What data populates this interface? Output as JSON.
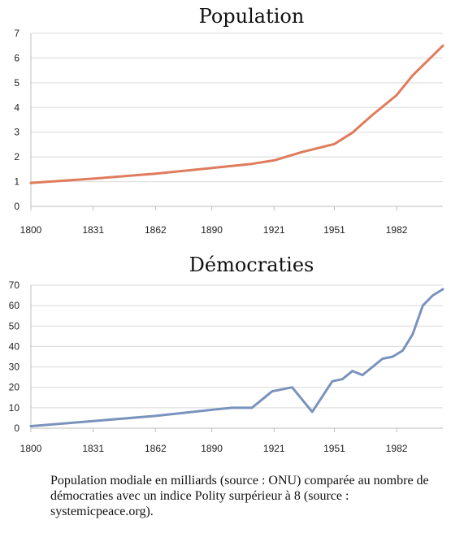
{
  "chart_data": [
    {
      "type": "line",
      "title": "Population",
      "xlabel": "",
      "ylabel": "",
      "x_ticks": [
        "1800",
        "1831",
        "1862",
        "1890",
        "1921",
        "1951",
        "1982"
      ],
      "xlim": [
        1800,
        2005
      ],
      "ylim": [
        0,
        7
      ],
      "y_ticks": [
        0,
        1,
        2,
        3,
        4,
        5,
        6,
        7
      ],
      "grid": true,
      "color": "#e07b5c",
      "series": [
        {
          "x": [
            1800,
            1831,
            1862,
            1890,
            1910,
            1921,
            1935,
            1951,
            1960,
            1970,
            1982,
            1990,
            2000,
            2005
          ],
          "y": [
            0.95,
            1.12,
            1.32,
            1.55,
            1.72,
            1.86,
            2.2,
            2.52,
            2.98,
            3.7,
            4.5,
            5.3,
            6.1,
            6.5
          ]
        }
      ]
    },
    {
      "type": "line",
      "title": "Démocraties",
      "xlabel": "",
      "ylabel": "",
      "x_ticks": [
        "1800",
        "1831",
        "1862",
        "1890",
        "1921",
        "1951",
        "1982"
      ],
      "xlim": [
        1800,
        2005
      ],
      "ylim": [
        0,
        70
      ],
      "y_ticks": [
        0,
        10,
        20,
        30,
        40,
        50,
        60,
        70
      ],
      "grid": true,
      "color": "#7a93bd",
      "series": [
        {
          "x": [
            1800,
            1831,
            1862,
            1890,
            1900,
            1910,
            1920,
            1930,
            1940,
            1950,
            1955,
            1960,
            1965,
            1975,
            1980,
            1985,
            1990,
            1995,
            2000,
            2005
          ],
          "y": [
            1,
            3.5,
            6,
            9,
            10,
            10,
            18,
            20,
            8,
            23,
            24,
            28,
            26,
            34,
            35,
            38,
            46,
            60,
            65,
            68
          ]
        }
      ]
    }
  ],
  "caption": "Population modiale en milliards (source : ONU) comparée au nombre de démocraties avec un indice Polity surpérieur à 8 (source : systemicpeace.org)."
}
